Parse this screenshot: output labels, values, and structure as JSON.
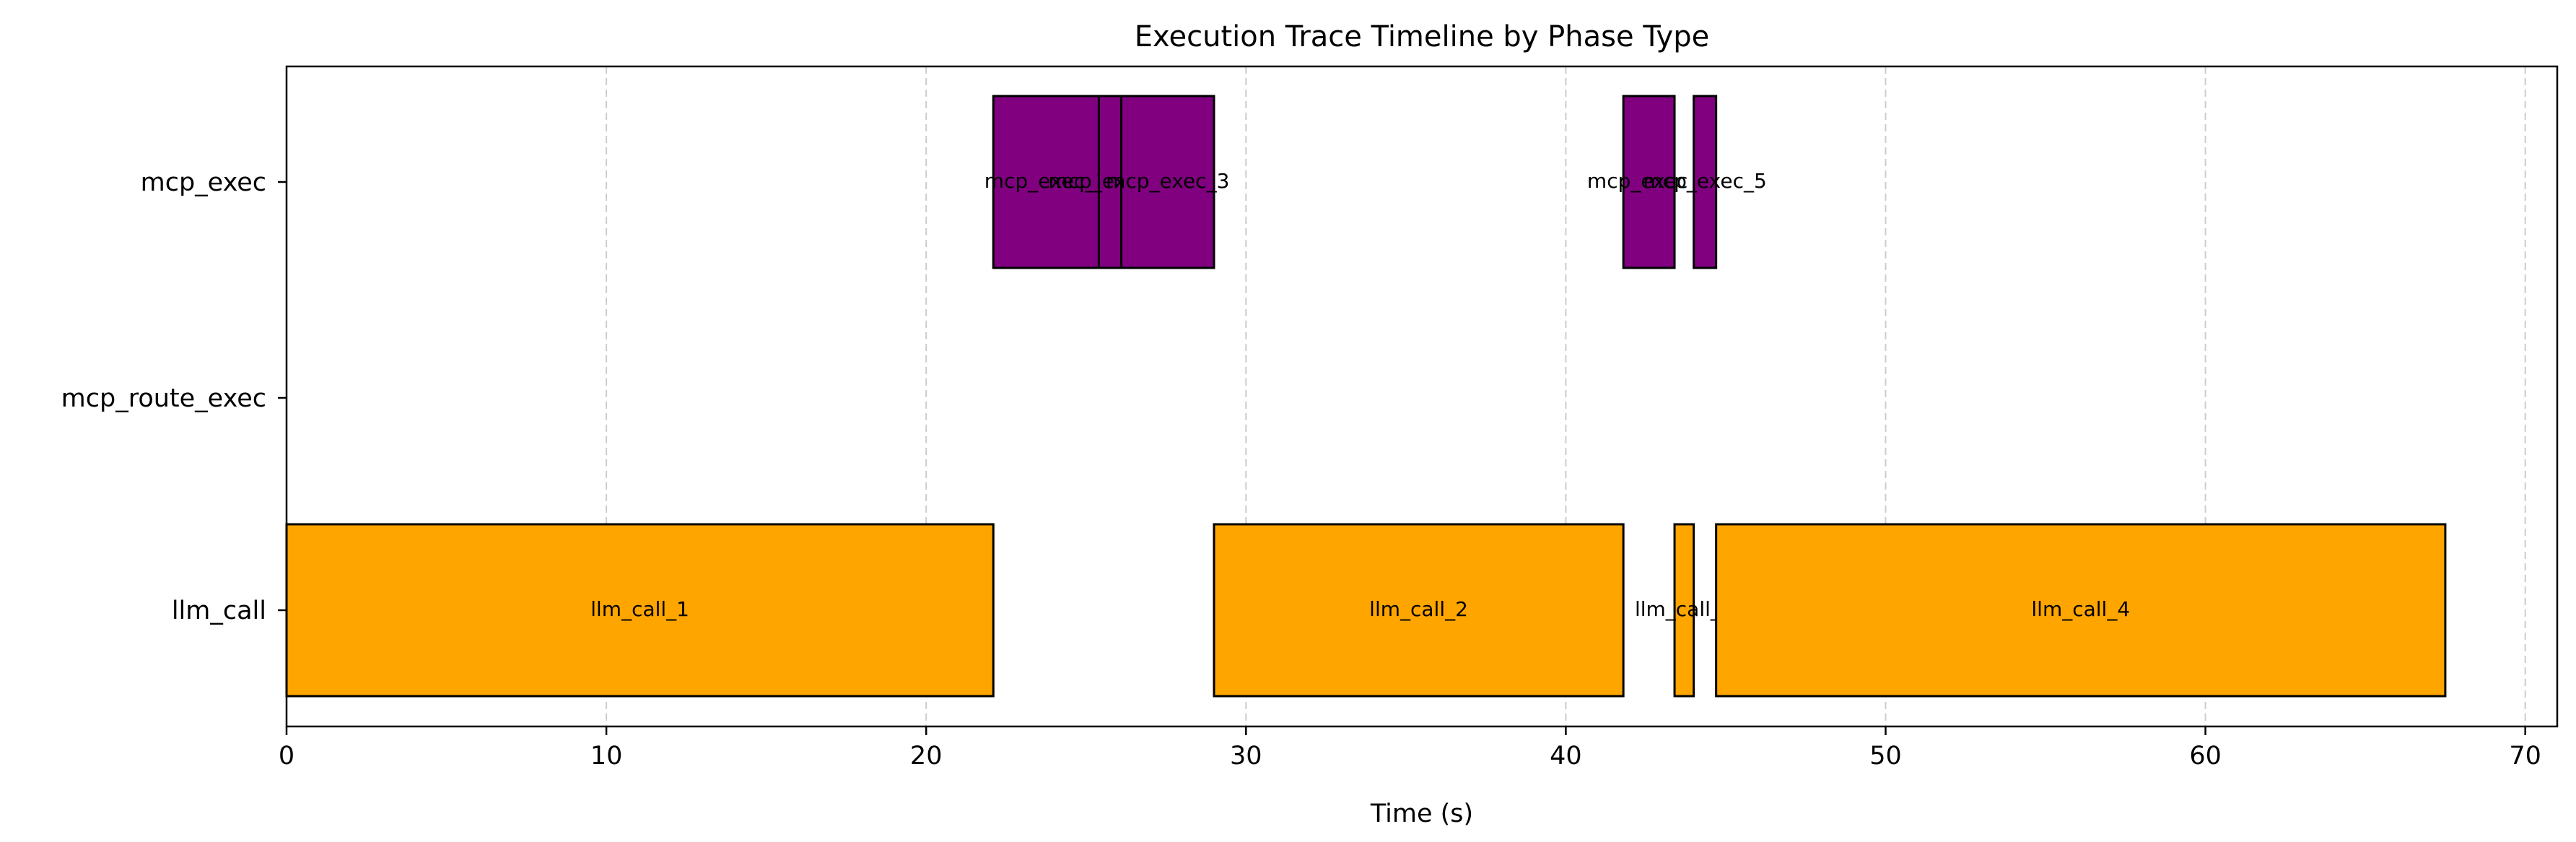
{
  "chart_data": {
    "type": "bar",
    "orientation": "horizontal-timeline",
    "title": "Execution Trace Timeline by Phase Type",
    "xlabel": "Time (s)",
    "ylabel": "",
    "xlim": [
      0,
      71
    ],
    "xticks": [
      0,
      10,
      20,
      30,
      40,
      50,
      60,
      70
    ],
    "grid": "x-dashed",
    "categories": [
      "mcp_exec",
      "mcp_route_exec",
      "llm_call"
    ],
    "colors": {
      "mcp_exec": "#800080",
      "llm_call": "#ffa500",
      "edge": "#000000",
      "grid": "#cccccc"
    },
    "segments": [
      {
        "label": "llm_call_1",
        "category": "llm_call",
        "start": 0.0,
        "end": 22.1
      },
      {
        "label": "mcp_exec_1",
        "category": "mcp_exec",
        "start": 22.1,
        "end": 25.4
      },
      {
        "label": "mcp_exec_2",
        "category": "mcp_exec",
        "start": 25.4,
        "end": 26.1
      },
      {
        "label": "mcp_exec_3",
        "category": "mcp_exec",
        "start": 26.1,
        "end": 29.0
      },
      {
        "label": "llm_call_2",
        "category": "llm_call",
        "start": 29.0,
        "end": 41.8
      },
      {
        "label": "mcp_exec_4",
        "category": "mcp_exec",
        "start": 41.8,
        "end": 43.4
      },
      {
        "label": "llm_call_3",
        "category": "llm_call",
        "start": 43.4,
        "end": 44.0
      },
      {
        "label": "mcp_exec_5",
        "category": "mcp_exec",
        "start": 44.0,
        "end": 44.7
      },
      {
        "label": "llm_call_4",
        "category": "llm_call",
        "start": 44.7,
        "end": 67.5
      }
    ]
  }
}
